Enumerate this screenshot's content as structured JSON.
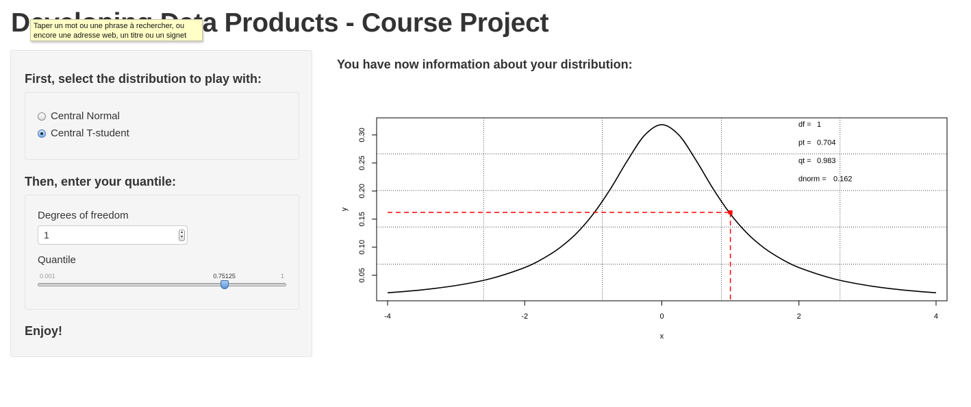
{
  "page": {
    "title": "Developing Data Products - Course Project"
  },
  "tooltip": {
    "text": "Taper un mot ou une phrase à rechercher, ou\nencore une adresse web, un titre ou un signet"
  },
  "sidebar": {
    "distribution_heading": "First, select the distribution to play with:",
    "distributions": [
      {
        "label": "Central Normal",
        "selected": false
      },
      {
        "label": "Central T-student",
        "selected": true
      }
    ],
    "quantile_heading": "Then, enter your quantile:",
    "dof": {
      "label": "Degrees of freedom",
      "value": "1"
    },
    "quantile": {
      "label": "Quantile",
      "min_label": "0.001",
      "max_label": "1",
      "value": 0.75125,
      "value_label": "0.75125"
    },
    "footer": "Enjoy!"
  },
  "main": {
    "heading": "You have now information about your distribution:"
  },
  "colors": {
    "curve": "#000000",
    "marker": "#ff0000",
    "grid": "#000000"
  },
  "chart_data": {
    "type": "line",
    "title": "",
    "xlabel": "x",
    "ylabel": "y",
    "xlim": [
      -4.16,
      4.16
    ],
    "ylim": [
      0.0045,
      0.3304
    ],
    "x_ticks": [
      -4,
      -2,
      0,
      2,
      4
    ],
    "x_tick_labels": [
      "-4",
      "-2",
      "0",
      "2",
      "4"
    ],
    "y_ticks": [
      0.05,
      0.1,
      0.15,
      0.2,
      0.25,
      0.3
    ],
    "y_tick_labels": [
      "0.05",
      "0.10",
      "0.15",
      "0.20",
      "0.25",
      "0.30"
    ],
    "grid": true,
    "grid_x": [
      -2.6,
      -0.87,
      0.87,
      2.6
    ],
    "grid_y": [
      0.07,
      0.136,
      0.201,
      0.266
    ],
    "series": [
      {
        "x": [
          -4,
          -3.5,
          -3,
          -2.5,
          -2,
          -1.75,
          -1.5,
          -1.25,
          -1,
          -0.75,
          -0.5,
          -0.25,
          0,
          0.25,
          0.5,
          0.75,
          1,
          1.25,
          1.5,
          1.75,
          2,
          2.5,
          3,
          3.5,
          4
        ],
        "y": [
          0.0187,
          0.024,
          0.0318,
          0.0439,
          0.0637,
          0.0786,
          0.0979,
          0.124,
          0.1592,
          0.2037,
          0.2546,
          0.2996,
          0.3183,
          0.2996,
          0.2546,
          0.2037,
          0.1592,
          0.124,
          0.0979,
          0.0786,
          0.0637,
          0.0439,
          0.0318,
          0.024,
          0.0187
        ]
      }
    ],
    "marker": {
      "x": 1.0,
      "y": 0.162
    },
    "annotations": [
      {
        "label": "df =",
        "value": "1"
      },
      {
        "label": "pt =",
        "value": "0.704"
      },
      {
        "label": "qt =",
        "value": "0.983"
      },
      {
        "label": "dnorm =",
        "value": "0.162"
      }
    ]
  }
}
